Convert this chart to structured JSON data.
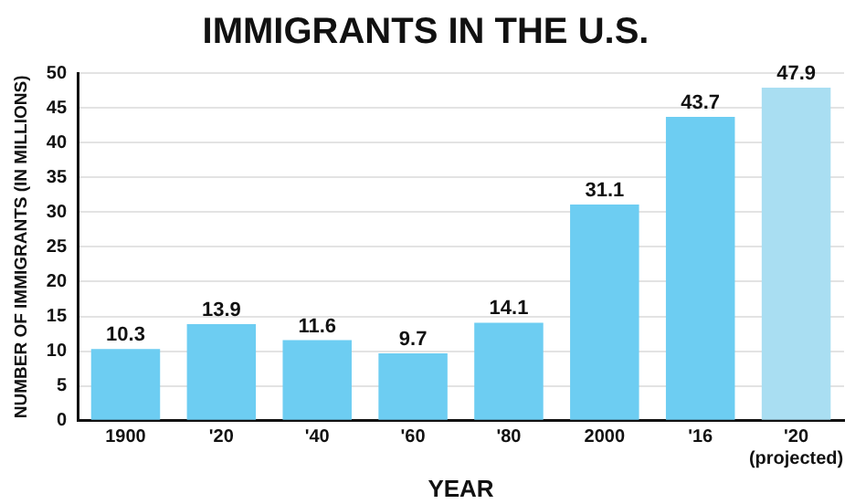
{
  "chart_data": {
    "type": "bar",
    "title": "IMMIGRANTS IN THE U.S.",
    "xlabel": "YEAR",
    "ylabel": "NUMBER OF IMMIGRANTS (IN MILLIONS)",
    "categories": [
      "1900",
      "'20",
      "'40",
      "'60",
      "'80",
      "2000",
      "'16",
      "'20 (projected)"
    ],
    "values": [
      10.3,
      13.9,
      11.6,
      9.7,
      14.1,
      31.1,
      43.7,
      47.9
    ],
    "colors": [
      "#6dcdf2",
      "#6dcdf2",
      "#6dcdf2",
      "#6dcdf2",
      "#6dcdf2",
      "#6dcdf2",
      "#6dcdf2",
      "#a9def2"
    ],
    "ylim": [
      0,
      50
    ],
    "yticks": [
      0,
      5,
      10,
      15,
      20,
      25,
      30,
      35,
      40,
      45,
      50
    ],
    "grid": "y",
    "data_labels": true,
    "legend": false
  }
}
